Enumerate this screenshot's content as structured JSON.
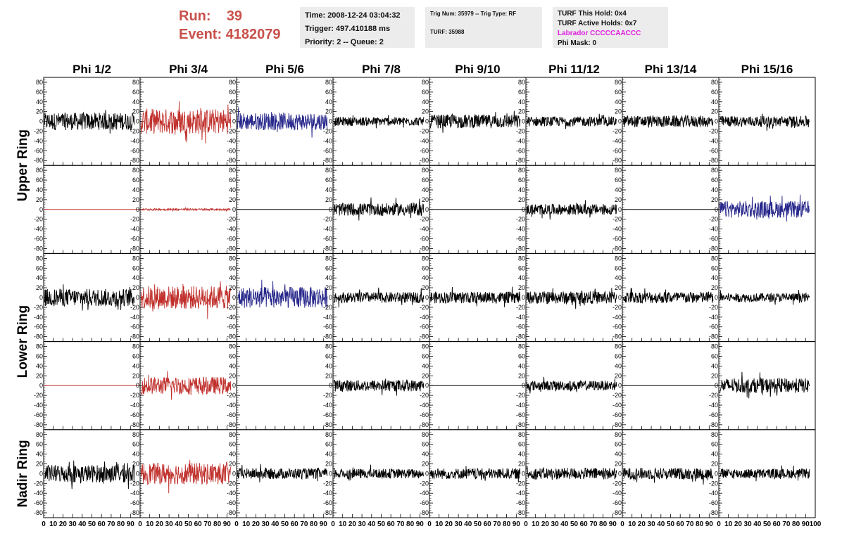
{
  "header": {
    "run_label": "Run:",
    "run_value": "39",
    "event_label": "Event:",
    "event_value": "4182079"
  },
  "info": {
    "time": "Time: 2008-12-24 03:04:32",
    "trigger": "Trigger: 497.410188 ms",
    "priority": "Priority: 2 -- Queue: 2",
    "trig_num": "Trig Num: 35979 -- Trig Type: RF",
    "turf": "TURF: 35988",
    "turf_hold": "TURF This Hold: 0x4",
    "turf_active": "TURF Active Holds: 0x7",
    "labrador": "Labrador CCCCCAACCC",
    "phi_mask": "Phi Mask: 0"
  },
  "colors": {
    "black": "#000000",
    "red": "#c0302c",
    "blue": "#28288c",
    "run_text": "#c8504a",
    "magenta": "#e020e0",
    "info_bg": "#ececec"
  },
  "chart_data": {
    "type": "line",
    "columns": [
      "Phi 1/2",
      "Phi 3/4",
      "Phi 5/6",
      "Phi 7/8",
      "Phi 9/10",
      "Phi 11/12",
      "Phi 13/14",
      "Phi 15/16"
    ],
    "ring_labels": [
      {
        "label": "Upper Ring",
        "rows": [
          0,
          1
        ]
      },
      {
        "label": "Lower Ring",
        "rows": [
          2,
          3
        ]
      },
      {
        "label": "Nadir Ring",
        "rows": [
          4
        ]
      }
    ],
    "xlim": [
      0,
      100
    ],
    "ylim": [
      -90,
      90
    ],
    "yticks": [
      -80,
      -60,
      -40,
      -20,
      0,
      20,
      40,
      60,
      80
    ],
    "xticks": [
      0,
      10,
      20,
      30,
      40,
      50,
      60,
      70,
      80,
      90,
      100
    ],
    "xtick_last_panel": [
      "0",
      "10",
      "20",
      "30",
      "40",
      "50",
      "60",
      "70",
      "80",
      "90",
      "100"
    ],
    "samples": 260,
    "panels": [
      [
        {
          "color": "black",
          "amp": 18,
          "flat": false
        },
        {
          "color": "red",
          "amp": 26,
          "flat": false
        },
        {
          "color": "blue",
          "amp": 18,
          "flat": false
        },
        {
          "color": "black",
          "amp": 9,
          "flat": false
        },
        {
          "color": "black",
          "amp": 14,
          "flat": false
        },
        {
          "color": "black",
          "amp": 10,
          "flat": false
        },
        {
          "color": "black",
          "amp": 12,
          "flat": false
        },
        {
          "color": "black",
          "amp": 11,
          "flat": false
        }
      ],
      [
        {
          "color": "red",
          "amp": 0,
          "flat": true
        },
        {
          "color": "red",
          "amp": 2,
          "flat": false
        },
        {
          "color": "black",
          "amp": 0,
          "flat": true
        },
        {
          "color": "black",
          "amp": 13,
          "flat": false
        },
        {
          "color": "black",
          "amp": 0,
          "flat": true
        },
        {
          "color": "black",
          "amp": 11,
          "flat": false
        },
        {
          "color": "black",
          "amp": 0,
          "flat": true
        },
        {
          "color": "blue",
          "amp": 17,
          "flat": false
        }
      ],
      [
        {
          "color": "black",
          "amp": 18,
          "flat": false
        },
        {
          "color": "red",
          "amp": 24,
          "flat": false
        },
        {
          "color": "blue",
          "amp": 22,
          "flat": false
        },
        {
          "color": "black",
          "amp": 11,
          "flat": false
        },
        {
          "color": "black",
          "amp": 12,
          "flat": false
        },
        {
          "color": "black",
          "amp": 13,
          "flat": false
        },
        {
          "color": "black",
          "amp": 12,
          "flat": false
        },
        {
          "color": "black",
          "amp": 9,
          "flat": false
        }
      ],
      [
        {
          "color": "red",
          "amp": 0,
          "flat": true
        },
        {
          "color": "red",
          "amp": 18,
          "flat": false
        },
        {
          "color": "black",
          "amp": 0,
          "flat": true
        },
        {
          "color": "black",
          "amp": 12,
          "flat": false
        },
        {
          "color": "black",
          "amp": 0,
          "flat": true
        },
        {
          "color": "black",
          "amp": 10,
          "flat": false
        },
        {
          "color": "black",
          "amp": 0,
          "flat": true
        },
        {
          "color": "black",
          "amp": 15,
          "flat": false
        }
      ],
      [
        {
          "color": "black",
          "amp": 18,
          "flat": false
        },
        {
          "color": "red",
          "amp": 22,
          "flat": false
        },
        {
          "color": "black",
          "amp": 11,
          "flat": false
        },
        {
          "color": "black",
          "amp": 10,
          "flat": false
        },
        {
          "color": "black",
          "amp": 11,
          "flat": false
        },
        {
          "color": "black",
          "amp": 12,
          "flat": false
        },
        {
          "color": "black",
          "amp": 12,
          "flat": false
        },
        {
          "color": "black",
          "amp": 10,
          "flat": false
        }
      ]
    ]
  }
}
